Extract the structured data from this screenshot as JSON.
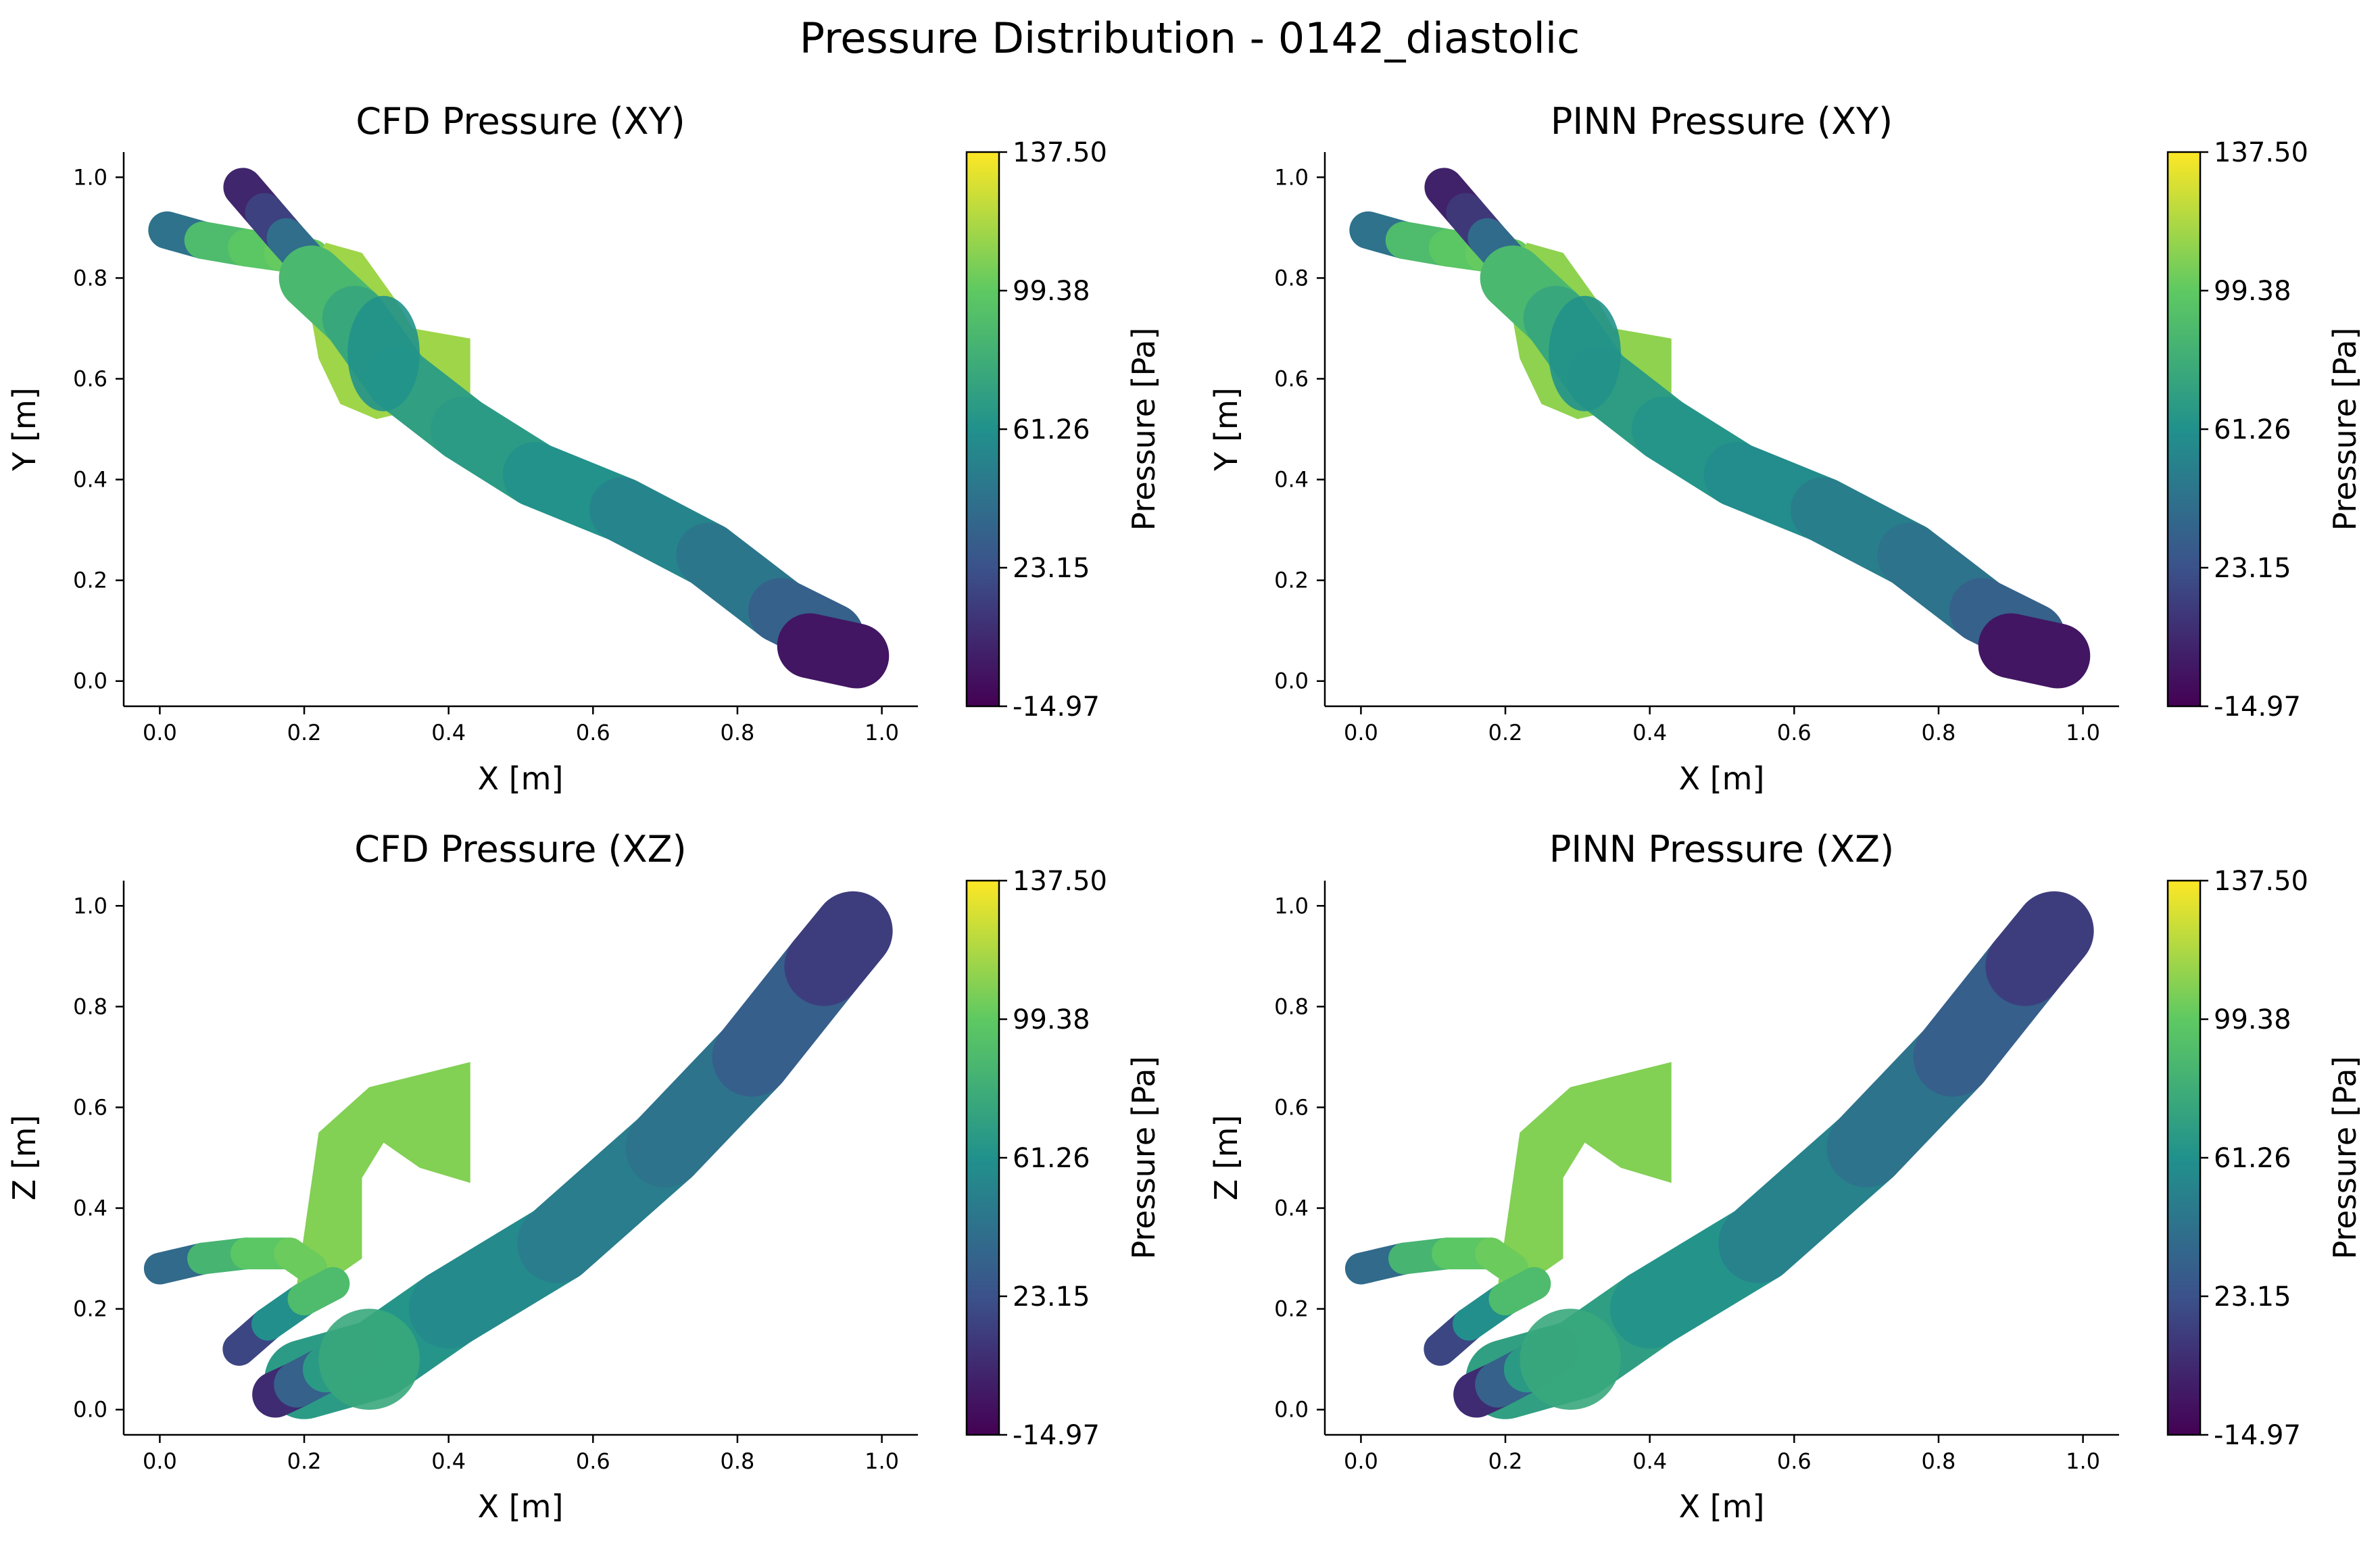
{
  "figure": {
    "title": "Pressure Distribution - 0142_diastolic"
  },
  "colorbar": {
    "label": "Pressure [Pa]",
    "min": -14.97,
    "max": 137.5,
    "ticks": [
      "137.50",
      "99.38",
      "61.26",
      "23.15",
      "-14.97"
    ],
    "colormap": "viridis",
    "stops": [
      "#440154",
      "#3b528b",
      "#21918c",
      "#5ec962",
      "#fde725"
    ]
  },
  "chart_data": [
    {
      "type": "scatter",
      "title": "CFD Pressure (XY)",
      "xlabel": "X [m]",
      "ylabel": "Y [m]",
      "xlim": [
        -0.05,
        1.05
      ],
      "ylim": [
        -0.05,
        1.05
      ],
      "xticks": [
        "0.0",
        "0.2",
        "0.4",
        "0.6",
        "0.8",
        "1.0"
      ],
      "yticks": [
        "0.0",
        "0.2",
        "0.4",
        "0.6",
        "0.8",
        "1.0"
      ],
      "view": "xy",
      "model": "cfd"
    },
    {
      "type": "scatter",
      "title": "PINN Pressure (XY)",
      "xlabel": "X [m]",
      "ylabel": "Y [m]",
      "xlim": [
        -0.05,
        1.05
      ],
      "ylim": [
        -0.05,
        1.05
      ],
      "xticks": [
        "0.0",
        "0.2",
        "0.4",
        "0.6",
        "0.8",
        "1.0"
      ],
      "yticks": [
        "0.0",
        "0.2",
        "0.4",
        "0.6",
        "0.8",
        "1.0"
      ],
      "view": "xy",
      "model": "pinn"
    },
    {
      "type": "scatter",
      "title": "CFD Pressure (XZ)",
      "xlabel": "X [m]",
      "ylabel": "Z [m]",
      "xlim": [
        -0.05,
        1.05
      ],
      "ylim": [
        -0.05,
        1.05
      ],
      "xticks": [
        "0.0",
        "0.2",
        "0.4",
        "0.6",
        "0.8",
        "1.0"
      ],
      "yticks": [
        "0.0",
        "0.2",
        "0.4",
        "0.6",
        "0.8",
        "1.0"
      ],
      "view": "xz",
      "model": "cfd"
    },
    {
      "type": "scatter",
      "title": "PINN Pressure (XZ)",
      "xlabel": "X [m]",
      "ylabel": "Z [m]",
      "xlim": [
        -0.05,
        1.05
      ],
      "ylim": [
        -0.05,
        1.05
      ],
      "xticks": [
        "0.0",
        "0.2",
        "0.4",
        "0.6",
        "0.8",
        "1.0"
      ],
      "yticks": [
        "0.0",
        "0.2",
        "0.4",
        "0.6",
        "0.8",
        "1.0"
      ],
      "view": "xz",
      "model": "pinn"
    }
  ]
}
